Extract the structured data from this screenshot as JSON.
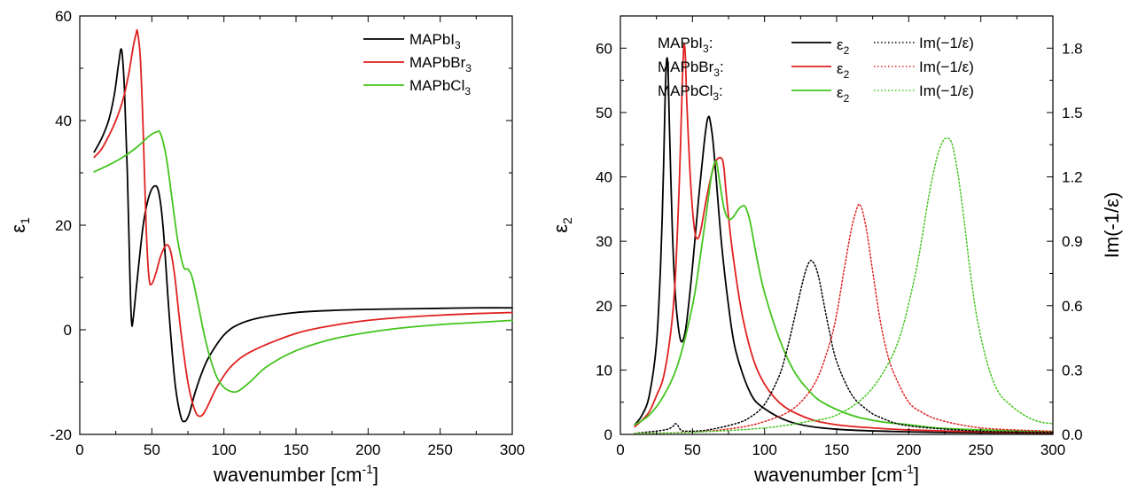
{
  "chart_data": [
    {
      "type": "line",
      "xlabel": "wavenumber [cm",
      "xlabel_sup": "-1",
      "xlabel_end": "]",
      "ylabel": "ε",
      "ylabel_sub": "1",
      "xlim": [
        0,
        300
      ],
      "ylim": [
        -20,
        60
      ],
      "xticks": [
        0,
        50,
        100,
        150,
        200,
        250,
        300
      ],
      "yticks": [
        -20,
        0,
        20,
        40,
        60
      ],
      "grid": false,
      "legend_position": "top-right",
      "legend": [
        {
          "base": "MAPbI",
          "sub": "3",
          "color": "#000000"
        },
        {
          "base": "MAPbBr",
          "sub": "3",
          "color": "#e02020"
        },
        {
          "base": "MAPbCl",
          "sub": "3",
          "color": "#44c41e"
        }
      ],
      "series": [
        {
          "name": "MAPbI3",
          "color": "#000000",
          "style": "solid",
          "x": [
            10,
            15,
            20,
            24,
            27,
            29,
            31,
            33,
            35,
            36,
            37,
            40,
            44,
            48,
            52,
            55,
            58,
            62,
            66,
            70,
            73,
            76,
            80,
            85,
            90,
            100,
            110,
            125,
            150,
            175,
            200,
            225,
            250,
            275,
            300
          ],
          "y": [
            34,
            36.5,
            40,
            45,
            51,
            53.5,
            46,
            30,
            8,
            1.3,
            2,
            10,
            20,
            25.5,
            27.5,
            26,
            19,
            3,
            -10,
            -16.5,
            -17.5,
            -16,
            -12,
            -8,
            -5,
            -1,
            1,
            2.3,
            3.3,
            3.7,
            3.9,
            4,
            4.1,
            4.2,
            4.2
          ]
        },
        {
          "name": "MAPbBr3",
          "color": "#e02020",
          "style": "solid",
          "x": [
            10,
            15,
            20,
            25,
            30,
            34,
            37,
            39,
            40,
            42,
            44,
            46,
            48,
            50,
            53,
            56,
            60,
            63,
            66,
            70,
            75,
            80,
            84,
            88,
            95,
            105,
            120,
            150,
            175,
            200,
            225,
            250,
            275,
            300
          ],
          "y": [
            33,
            34.5,
            37,
            40,
            44,
            49,
            54,
            56.5,
            57,
            52,
            38,
            20,
            10,
            8.8,
            11,
            14,
            16.2,
            15,
            10,
            0,
            -10,
            -15.5,
            -16.5,
            -15,
            -11,
            -7,
            -4,
            -0.7,
            0.8,
            1.8,
            2.4,
            2.8,
            3.1,
            3.3
          ]
        },
        {
          "name": "MAPbCl3",
          "color": "#44c41e",
          "style": "solid",
          "x": [
            10,
            20,
            30,
            40,
            48,
            53,
            56,
            60,
            64,
            68,
            72,
            75,
            78,
            82,
            86,
            90,
            95,
            100,
            105,
            110,
            118,
            130,
            150,
            175,
            200,
            225,
            250,
            275,
            300
          ],
          "y": [
            30.2,
            31.5,
            33,
            35,
            37,
            37.8,
            37.5,
            33,
            25,
            17,
            12,
            11.6,
            10,
            5,
            -0.5,
            -5,
            -9,
            -11,
            -11.8,
            -11.7,
            -10,
            -7,
            -4,
            -1.8,
            -0.5,
            0.4,
            1,
            1.4,
            1.8
          ]
        }
      ]
    },
    {
      "type": "line",
      "xlabel": "wavenumber [cm",
      "xlabel_sup": "-1",
      "xlabel_end": "]",
      "ylabel": "ε",
      "ylabel_sub": "2",
      "y2label": "Im(-1/ε)",
      "xlim": [
        0,
        300
      ],
      "ylim": [
        0,
        65
      ],
      "y2lim": [
        0,
        1.95
      ],
      "xticks": [
        0,
        50,
        100,
        150,
        200,
        250,
        300
      ],
      "yticks": [
        0,
        10,
        20,
        30,
        40,
        50,
        60
      ],
      "y2ticks": [
        "0.0",
        "0.3",
        "0.6",
        "0.9",
        "1.2",
        "1.5",
        "1.8"
      ],
      "grid": false,
      "legend_position": "top-right",
      "legend": [
        {
          "base": "MAPbI",
          "sub": "3",
          "suffix": ":",
          "color": "#000000",
          "eps": "ε",
          "eps_sub": "2",
          "im": "Im(−1/ε)"
        },
        {
          "base": "MAPbBr",
          "sub": "3",
          "suffix": ":",
          "color": "#e02020",
          "eps": "ε",
          "eps_sub": "2",
          "im": "Im(−1/ε)"
        },
        {
          "base": "MAPbCl",
          "sub": "3",
          "suffix": ":",
          "color": "#44c41e",
          "eps": "ε",
          "eps_sub": "2",
          "im": "Im(−1/ε)"
        }
      ],
      "series": [
        {
          "name": "MAPbI3 ε2",
          "color": "#000000",
          "style": "solid",
          "axis": "left",
          "x": [
            10,
            15,
            20,
            25,
            28,
            30,
            31,
            32,
            33,
            34,
            36,
            38,
            40,
            42,
            44,
            46,
            50,
            54,
            58,
            60,
            61,
            62,
            64,
            66,
            70,
            75,
            80,
            90,
            100,
            120,
            150,
            200,
            250,
            300
          ],
          "y": [
            1.5,
            3,
            6,
            14,
            27,
            42,
            52,
            58,
            57,
            48,
            32,
            22,
            17,
            14.5,
            15,
            17.5,
            26,
            36,
            45,
            48.5,
            49.3,
            49,
            46,
            41,
            30,
            20,
            13,
            6.5,
            4,
            1.8,
            0.8,
            0.4,
            0.25,
            0.2
          ]
        },
        {
          "name": "MAPbBr3 ε2",
          "color": "#e02020",
          "style": "solid",
          "axis": "left",
          "x": [
            10,
            15,
            20,
            25,
            30,
            35,
            38,
            41,
            43,
            44,
            45,
            46,
            48,
            50,
            52,
            54,
            56,
            60,
            64,
            67,
            69,
            70,
            71,
            72,
            74,
            78,
            85,
            95,
            110,
            130,
            150,
            175,
            200,
            250,
            300
          ],
          "y": [
            1.2,
            2.2,
            3.5,
            6,
            9,
            16,
            24,
            40,
            55,
            60.3,
            59,
            52,
            42,
            35,
            31,
            30.5,
            32,
            37,
            41,
            42.7,
            43,
            42.9,
            42.5,
            41,
            36,
            28,
            18,
            10,
            5,
            2.5,
            1.5,
            1,
            0.7,
            0.4,
            0.3
          ]
        },
        {
          "name": "MAPbCl3 ε2",
          "color": "#44c41e",
          "style": "solid",
          "axis": "left",
          "x": [
            10,
            20,
            30,
            40,
            50,
            55,
            60,
            63,
            65,
            66,
            67,
            69,
            72,
            75,
            78,
            82,
            85,
            87,
            90,
            95,
            100,
            110,
            120,
            130,
            140,
            160,
            180,
            200,
            220,
            250,
            300
          ],
          "y": [
            1.5,
            3,
            6,
            11,
            20,
            27,
            35,
            40,
            42,
            42.4,
            42,
            39,
            35,
            33.5,
            33.7,
            35,
            35.5,
            35.2,
            33,
            27,
            22,
            15,
            10,
            7,
            5,
            3,
            2,
            1.5,
            1,
            0.7,
            0.4
          ]
        },
        {
          "name": "MAPbI3 Im(-1/ε)",
          "color": "#000000",
          "style": "dotted",
          "axis": "right",
          "x": [
            10,
            30,
            36,
            38,
            40,
            42,
            46,
            60,
            80,
            90,
            100,
            110,
            115,
            120,
            125,
            128,
            130,
            132,
            134,
            136,
            138,
            140,
            145,
            150,
            160,
            170,
            180,
            200,
            250,
            300
          ],
          "y": [
            0.005,
            0.02,
            0.035,
            0.05,
            0.04,
            0.02,
            0.015,
            0.02,
            0.05,
            0.08,
            0.14,
            0.27,
            0.38,
            0.52,
            0.67,
            0.75,
            0.79,
            0.81,
            0.8,
            0.77,
            0.72,
            0.65,
            0.48,
            0.34,
            0.19,
            0.12,
            0.08,
            0.04,
            0.015,
            0.01
          ]
        },
        {
          "name": "MAPbBr3 Im(-1/ε)",
          "color": "#e02020",
          "style": "dotted",
          "axis": "right",
          "x": [
            10,
            50,
            80,
            100,
            120,
            135,
            145,
            150,
            155,
            160,
            163,
            165,
            166,
            167,
            168,
            170,
            172,
            175,
            180,
            185,
            190,
            200,
            210,
            220,
            240,
            260,
            300
          ],
          "y": [
            0.005,
            0.01,
            0.03,
            0.06,
            0.12,
            0.24,
            0.42,
            0.56,
            0.76,
            0.95,
            1.03,
            1.07,
            1.07,
            1.06,
            1.04,
            0.98,
            0.9,
            0.76,
            0.54,
            0.38,
            0.28,
            0.15,
            0.1,
            0.07,
            0.04,
            0.025,
            0.015
          ]
        },
        {
          "name": "MAPbCl3 Im(-1/ε)",
          "color": "#44c41e",
          "style": "dotted",
          "axis": "right",
          "x": [
            10,
            50,
            100,
            130,
            150,
            170,
            185,
            195,
            205,
            210,
            215,
            220,
            224,
            227,
            229,
            231,
            234,
            238,
            243,
            248,
            255,
            262,
            270,
            280,
            290,
            300
          ],
          "y": [
            0.005,
            0.01,
            0.03,
            0.06,
            0.09,
            0.18,
            0.32,
            0.48,
            0.76,
            0.95,
            1.15,
            1.3,
            1.37,
            1.38,
            1.37,
            1.33,
            1.22,
            1.02,
            0.74,
            0.52,
            0.32,
            0.2,
            0.14,
            0.09,
            0.06,
            0.05
          ]
        }
      ]
    }
  ]
}
